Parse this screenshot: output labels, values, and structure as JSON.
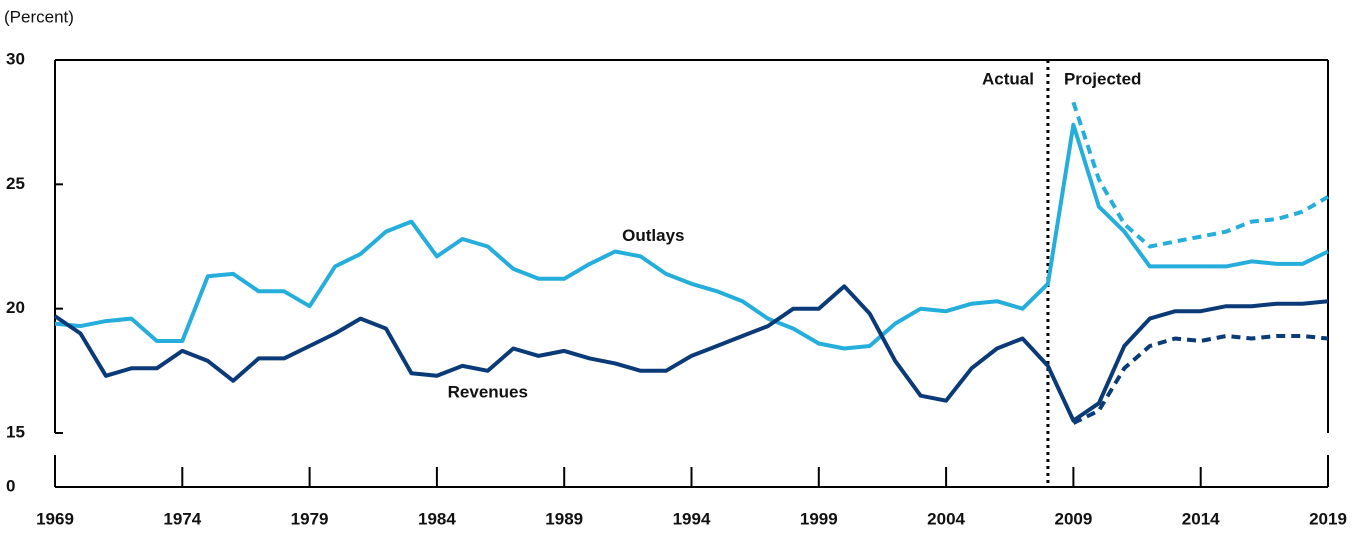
{
  "chart_data": {
    "type": "line",
    "y_axis_label": "(Percent)",
    "x": [
      1969,
      1970,
      1971,
      1972,
      1973,
      1974,
      1975,
      1976,
      1977,
      1978,
      1979,
      1980,
      1981,
      1982,
      1983,
      1984,
      1985,
      1986,
      1987,
      1988,
      1989,
      1990,
      1991,
      1992,
      1993,
      1994,
      1995,
      1996,
      1997,
      1998,
      1999,
      2000,
      2001,
      2002,
      2003,
      2004,
      2005,
      2006,
      2007,
      2008,
      2009,
      2010,
      2011,
      2012,
      2013,
      2014,
      2015,
      2016,
      2017,
      2018,
      2019
    ],
    "series": [
      {
        "name": "Outlays",
        "color": "#25aedc",
        "dash": false,
        "values": [
          19.4,
          19.3,
          19.5,
          19.6,
          18.7,
          18.7,
          21.3,
          21.4,
          20.7,
          20.7,
          20.1,
          21.7,
          22.2,
          23.1,
          23.5,
          22.1,
          22.8,
          22.5,
          21.6,
          21.2,
          21.2,
          21.8,
          22.3,
          22.1,
          21.4,
          21.0,
          20.7,
          20.3,
          19.6,
          19.2,
          18.6,
          18.4,
          18.5,
          19.4,
          20.0,
          19.9,
          20.2,
          20.3,
          20.0,
          21.0,
          27.4,
          24.1,
          23.1,
          21.7,
          21.7,
          21.7,
          21.7,
          21.9,
          21.8,
          21.8,
          22.3
        ]
      },
      {
        "name": "Revenues",
        "color": "#0b3a78",
        "dash": false,
        "values": [
          19.7,
          19.0,
          17.3,
          17.6,
          17.6,
          18.3,
          17.9,
          17.1,
          18.0,
          18.0,
          18.5,
          19.0,
          19.6,
          19.2,
          17.4,
          17.3,
          17.7,
          17.5,
          18.4,
          18.1,
          18.3,
          18.0,
          17.8,
          17.5,
          17.5,
          18.1,
          18.5,
          18.9,
          19.3,
          20.0,
          20.0,
          20.9,
          19.8,
          17.9,
          16.5,
          16.3,
          17.6,
          18.4,
          18.8,
          17.7,
          15.5,
          16.2,
          18.5,
          19.6,
          19.9,
          19.9,
          20.1,
          20.1,
          20.2,
          20.2,
          20.3
        ]
      },
      {
        "color": "#25aedc",
        "dash": true,
        "values": [
          null,
          null,
          null,
          null,
          null,
          null,
          null,
          null,
          null,
          null,
          null,
          null,
          null,
          null,
          null,
          null,
          null,
          null,
          null,
          null,
          null,
          null,
          null,
          null,
          null,
          null,
          null,
          null,
          null,
          null,
          null,
          null,
          null,
          null,
          null,
          null,
          null,
          null,
          null,
          null,
          28.3,
          25.2,
          23.4,
          22.5,
          22.7,
          22.9,
          23.1,
          23.5,
          23.6,
          23.9,
          24.5
        ]
      },
      {
        "color": "#0b3a78",
        "dash": true,
        "values": [
          null,
          null,
          null,
          null,
          null,
          null,
          null,
          null,
          null,
          null,
          null,
          null,
          null,
          null,
          null,
          null,
          null,
          null,
          null,
          null,
          null,
          null,
          null,
          null,
          null,
          null,
          null,
          null,
          null,
          null,
          null,
          null,
          null,
          null,
          null,
          null,
          null,
          null,
          null,
          null,
          15.4,
          15.9,
          17.6,
          18.5,
          18.8,
          18.7,
          18.9,
          18.8,
          18.9,
          18.9,
          18.8
        ]
      }
    ],
    "xlim": [
      1969,
      2019
    ],
    "xticks": [
      1969,
      1974,
      1979,
      1984,
      1989,
      1994,
      1999,
      2004,
      2009,
      2014,
      2019
    ],
    "ylim": [
      0,
      30
    ],
    "axis_break": [
      0,
      15
    ],
    "yticks": [
      0,
      15,
      20,
      25,
      30
    ],
    "divider_x": 2008,
    "divider_labels": [
      "Actual",
      "Projected"
    ],
    "grid": false
  }
}
